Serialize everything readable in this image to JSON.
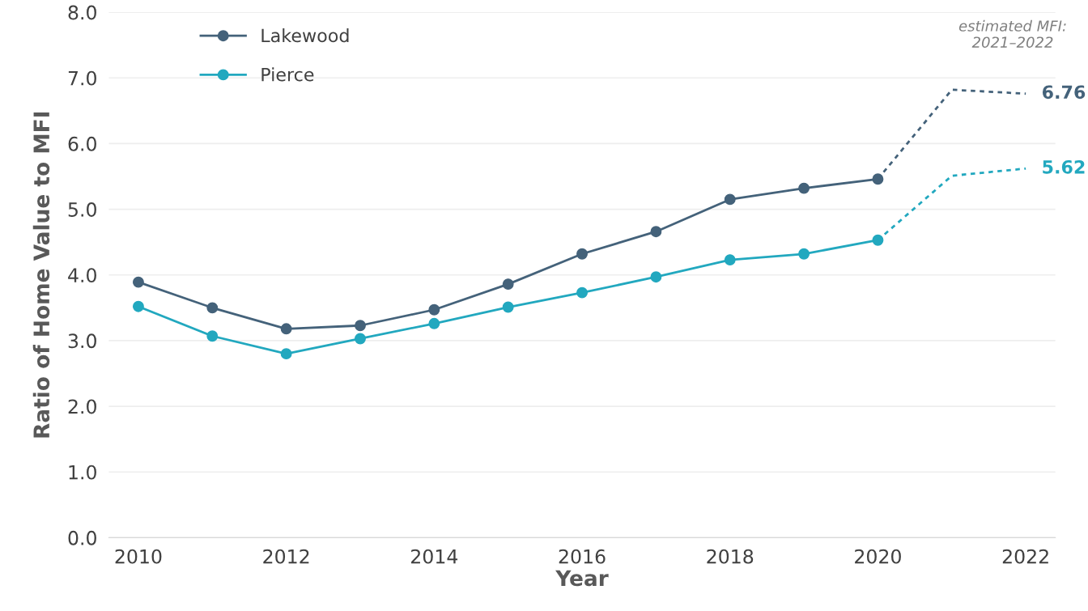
{
  "chart_data": {
    "type": "line",
    "xlabel": "Year",
    "ylabel": "Ratio of Home Value to MFI",
    "xlim": [
      2009.6,
      2022.4
    ],
    "xticks": [
      2010,
      2012,
      2014,
      2016,
      2018,
      2020,
      2022
    ],
    "ylim": [
      0,
      8
    ],
    "yticks": [
      {
        "value": 0,
        "label": "0.0"
      },
      {
        "value": 1,
        "label": "1.0"
      },
      {
        "value": 2,
        "label": "2.0"
      },
      {
        "value": 3,
        "label": "3.0"
      },
      {
        "value": 4,
        "label": "4.0"
      },
      {
        "value": 5,
        "label": "5.0"
      },
      {
        "value": 6,
        "label": "6.0"
      },
      {
        "value": 7,
        "label": "7.0"
      },
      {
        "value": 8,
        "label": "8.0"
      }
    ],
    "grid": "y",
    "legend": "top left",
    "marker": "circle",
    "line_style": "solid",
    "series": [
      {
        "name": "Lakewood",
        "color": "#44627a",
        "x": [
          2010,
          2011,
          2012,
          2013,
          2014,
          2015,
          2016,
          2017,
          2018,
          2019,
          2020
        ],
        "values": [
          3.89,
          3.5,
          3.18,
          3.23,
          3.47,
          3.86,
          4.32,
          4.66,
          5.15,
          5.32,
          5.46
        ]
      },
      {
        "name": "Pierce",
        "color": "#22a8bf",
        "x": [
          2010,
          2011,
          2012,
          2013,
          2014,
          2015,
          2016,
          2017,
          2018,
          2019,
          2020
        ],
        "values": [
          3.52,
          3.07,
          2.8,
          3.03,
          3.26,
          3.51,
          3.73,
          3.97,
          4.23,
          4.32,
          4.53
        ]
      },
      {
        "color": "#44627a",
        "x": [
          2020,
          2021,
          2022
        ],
        "values": [
          5.46,
          6.82,
          6.76
        ],
        "line_style": "dotted",
        "marker": "none"
      },
      {
        "color": "#22a8bf",
        "x": [
          2020,
          2021,
          2022
        ],
        "values": [
          4.53,
          5.51,
          5.62
        ],
        "line_style": "dotted",
        "marker": "none"
      }
    ],
    "annotations": [
      "estimated MFI:\n2021–2022",
      {
        "text": "6.76",
        "x": 2022,
        "y": 6.76
      },
      {
        "text": "5.62",
        "x": 2022,
        "y": 5.62
      }
    ]
  }
}
